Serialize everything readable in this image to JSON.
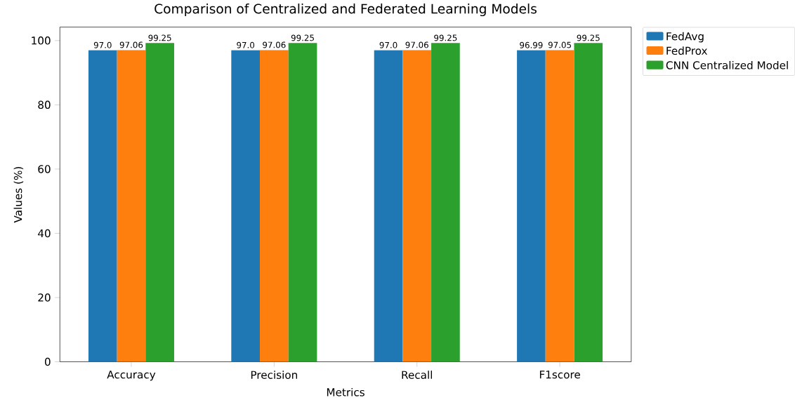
{
  "chart_data": {
    "type": "bar",
    "title": "Comparison of Centralized and Federated Learning Models",
    "xlabel": "Metrics",
    "ylabel": "Values (%)",
    "categories": [
      "Accuracy",
      "Precision",
      "Recall",
      "F1score"
    ],
    "series": [
      {
        "name": "FedAvg",
        "color": "#1f77b4",
        "values": [
          97.0,
          97.0,
          97.0,
          96.99
        ],
        "value_labels": [
          "97.0",
          "97.0",
          "97.0",
          "96.99"
        ]
      },
      {
        "name": "FedProx",
        "color": "#ff7f0e",
        "values": [
          97.06,
          97.06,
          97.06,
          97.05
        ],
        "value_labels": [
          "97.06",
          "97.06",
          "97.06",
          "97.05"
        ]
      },
      {
        "name": "CNN Centralized Model",
        "color": "#2ca02c",
        "values": [
          99.25,
          99.25,
          99.25,
          99.25
        ],
        "value_labels": [
          "99.25",
          "99.25",
          "99.25",
          "99.25"
        ]
      }
    ],
    "ylim": [
      0,
      104.2
    ],
    "yticks": [
      0,
      20,
      40,
      60,
      80,
      100
    ],
    "legend": "right"
  }
}
